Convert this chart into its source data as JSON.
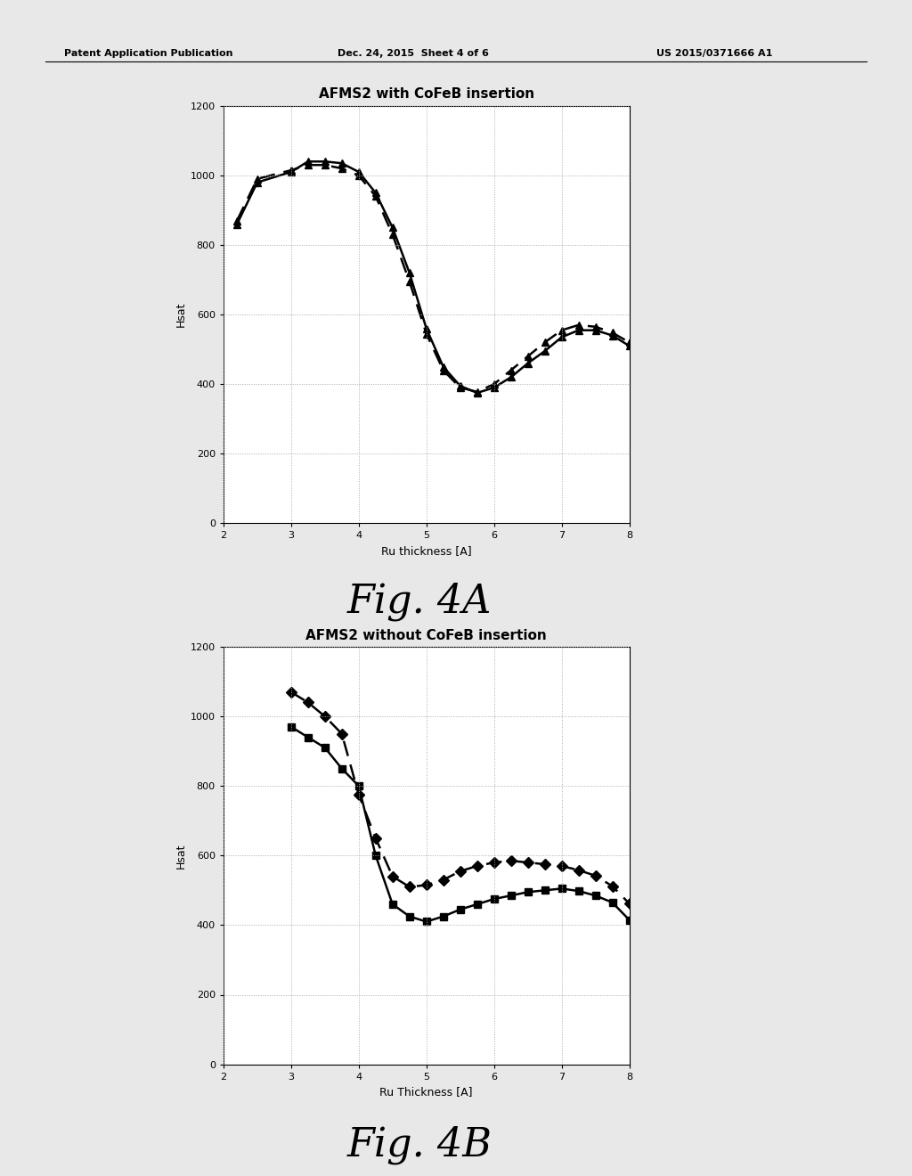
{
  "fig4a": {
    "title": "AFMS2 with CoFeB insertion",
    "xlabel": "Ru thickness [A]",
    "ylabel": "Hsat",
    "xlim": [
      2,
      8
    ],
    "ylim": [
      0,
      1200
    ],
    "yticks": [
      0,
      200,
      400,
      600,
      800,
      1000,
      1200
    ],
    "xticks": [
      2,
      3,
      4,
      5,
      6,
      7,
      8
    ],
    "series1": {
      "x": [
        2.2,
        2.5,
        3.0,
        3.25,
        3.5,
        3.75,
        4.0,
        4.25,
        4.5,
        4.75,
        5.0,
        5.25,
        5.5,
        5.75,
        6.0,
        6.25,
        6.5,
        6.75,
        7.0,
        7.25,
        7.5,
        7.75,
        8.0
      ],
      "y": [
        860,
        980,
        1010,
        1040,
        1040,
        1035,
        1010,
        950,
        850,
        720,
        560,
        450,
        395,
        375,
        390,
        420,
        460,
        495,
        535,
        555,
        555,
        540,
        510
      ],
      "linestyle": "solid",
      "marker": "^",
      "color": "#000000",
      "linewidth": 1.8
    },
    "series2": {
      "x": [
        2.2,
        2.5,
        3.0,
        3.25,
        3.5,
        3.75,
        4.0,
        4.25,
        4.5,
        4.75,
        5.0,
        5.25,
        5.5,
        5.75,
        6.0,
        6.25,
        6.5,
        6.75,
        7.0,
        7.25,
        7.5,
        7.75,
        8.0
      ],
      "y": [
        870,
        990,
        1015,
        1030,
        1030,
        1020,
        1000,
        940,
        830,
        695,
        545,
        440,
        390,
        378,
        400,
        440,
        480,
        520,
        555,
        570,
        565,
        548,
        520
      ],
      "linestyle": "dashed",
      "marker": "^",
      "color": "#000000",
      "linewidth": 1.8
    }
  },
  "fig4b": {
    "title": "AFMS2 without CoFeB insertion",
    "xlabel": "Ru Thickness [A]",
    "ylabel": "Hsat",
    "xlim": [
      2,
      8
    ],
    "ylim": [
      0,
      1200
    ],
    "yticks": [
      0,
      200,
      400,
      600,
      800,
      1000,
      1200
    ],
    "xticks": [
      2,
      3,
      4,
      5,
      6,
      7,
      8
    ],
    "series1": {
      "x": [
        3.0,
        3.25,
        3.5,
        3.75,
        4.0,
        4.25,
        4.5,
        4.75,
        5.0,
        5.25,
        5.5,
        5.75,
        6.0,
        6.25,
        6.5,
        6.75,
        7.0,
        7.25,
        7.5,
        7.75,
        8.0
      ],
      "y": [
        970,
        940,
        910,
        850,
        800,
        600,
        460,
        425,
        410,
        425,
        445,
        460,
        475,
        485,
        495,
        500,
        505,
        498,
        485,
        465,
        415
      ],
      "linestyle": "solid",
      "marker": "s",
      "color": "#000000",
      "linewidth": 1.8
    },
    "series2": {
      "x": [
        3.0,
        3.25,
        3.5,
        3.75,
        4.0,
        4.25,
        4.5,
        4.75,
        5.0,
        5.25,
        5.5,
        5.75,
        6.0,
        6.25,
        6.5,
        6.75,
        7.0,
        7.25,
        7.5,
        7.75,
        8.0
      ],
      "y": [
        1070,
        1040,
        1000,
        950,
        775,
        650,
        540,
        510,
        515,
        530,
        555,
        570,
        580,
        585,
        580,
        575,
        570,
        558,
        542,
        512,
        462
      ],
      "linestyle": "dashed",
      "marker": "D",
      "color": "#000000",
      "linewidth": 1.8
    }
  },
  "header_left": "Patent Application Publication",
  "header_mid": "Dec. 24, 2015  Sheet 4 of 6",
  "header_right": "US 2015/0371666 A1",
  "fig4a_label": "Fig. 4A",
  "fig4b_label": "Fig. 4B",
  "page_bg": "#e8e8e8",
  "plot_bg": "#ffffff",
  "grid_color": "#aaaaaa",
  "grid_linestyle": "dotted",
  "title_fontsize": 11,
  "axis_label_fontsize": 9,
  "tick_fontsize": 8,
  "figlabel_fontsize": 32,
  "header_fontsize": 8
}
